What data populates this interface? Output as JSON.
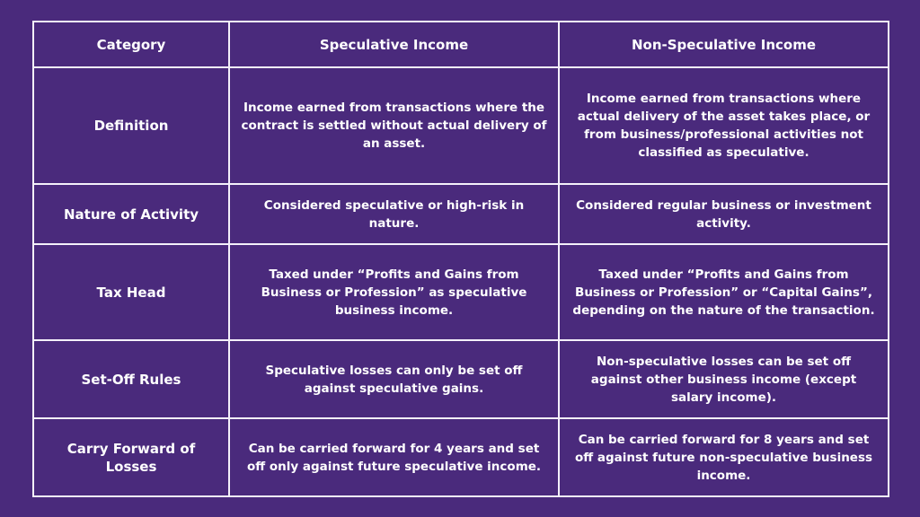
{
  "table": {
    "headers": [
      "Category",
      "Speculative Income",
      "Non-Speculative Income"
    ],
    "rows": [
      [
        "Definition",
        "Income earned from transactions where the contract is settled without actual delivery of an asset.",
        "Income earned from transactions where actual delivery of the asset takes place, or from business/professional activities not classified as speculative."
      ],
      [
        "Nature of Activity",
        "Considered speculative or high-risk in nature.",
        "Considered regular business or investment activity."
      ],
      [
        "Tax Head",
        "Taxed under “Profits and Gains from Business or Profession” as speculative business income.",
        "Taxed under “Profits and Gains from Business or Profession” or “Capital Gains”, depending on the nature of the transaction."
      ],
      [
        "Set-Off Rules",
        "Speculative losses can only be set off against speculative gains.",
        "Non-speculative losses can be set off against other business income (except salary income)."
      ],
      [
        "Carry Forward of Losses",
        "Can be carried forward for 4 years and set off only against future speculative income.",
        "Can be carried forward for 8 years and set off against future non-speculative business income."
      ]
    ]
  },
  "colors": {
    "background": "#4a2a7c",
    "border": "#f4f0fa",
    "text": "#ffffff"
  }
}
